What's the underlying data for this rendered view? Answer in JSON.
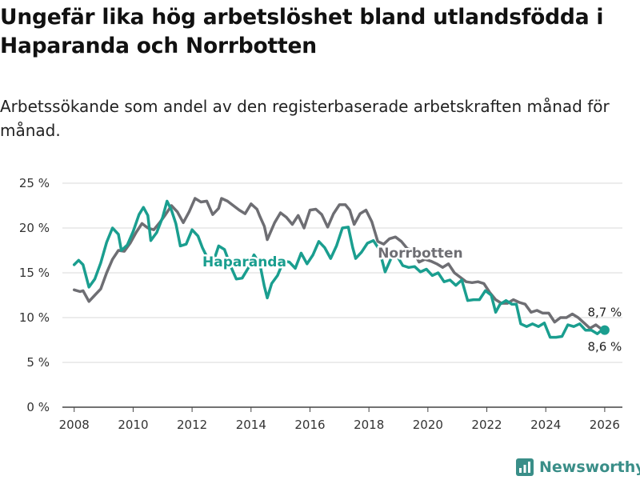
{
  "chart_data": {
    "type": "line",
    "title": "Ungefär lika hög arbetslöshet bland utlandsfödda i Haparanda och Norrbotten",
    "subtitle": "Arbetssökande som andel av den registerbaserade arbetskraften månad för månad.",
    "xlabel": "",
    "ylabel": "",
    "xlim": [
      2007.6,
      2026.6
    ],
    "ylim": [
      0,
      25
    ],
    "x_ticks": [
      2008,
      2010,
      2012,
      2014,
      2016,
      2018,
      2020,
      2022,
      2024,
      2026
    ],
    "x_tick_labels": [
      "2008",
      "2010",
      "2012",
      "2014",
      "2016",
      "2018",
      "2020",
      "2022",
      "2024",
      "2026"
    ],
    "y_ticks": [
      0,
      5,
      10,
      15,
      20,
      25
    ],
    "y_tick_labels": [
      "0 %",
      "5 %",
      "10 %",
      "15 %",
      "20 %",
      "25 %"
    ],
    "grid": true,
    "series": [
      {
        "name": "Norrbotten",
        "label": "Norrbotten",
        "color": "#6e6e73",
        "end_label": "8,7 %",
        "points": [
          [
            2008.0,
            13.1
          ],
          [
            2008.2,
            12.9
          ],
          [
            2008.3,
            13.0
          ],
          [
            2008.5,
            11.8
          ],
          [
            2008.7,
            12.5
          ],
          [
            2008.9,
            13.2
          ],
          [
            2009.1,
            15.0
          ],
          [
            2009.3,
            16.5
          ],
          [
            2009.5,
            17.5
          ],
          [
            2009.7,
            17.4
          ],
          [
            2009.9,
            18.3
          ],
          [
            2010.1,
            19.5
          ],
          [
            2010.3,
            20.5
          ],
          [
            2010.5,
            20.0
          ],
          [
            2010.7,
            19.8
          ],
          [
            2010.9,
            20.6
          ],
          [
            2011.1,
            21.5
          ],
          [
            2011.3,
            22.5
          ],
          [
            2011.5,
            21.8
          ],
          [
            2011.7,
            20.6
          ],
          [
            2011.9,
            21.8
          ],
          [
            2012.1,
            23.3
          ],
          [
            2012.3,
            22.9
          ],
          [
            2012.5,
            23.0
          ],
          [
            2012.7,
            21.5
          ],
          [
            2012.9,
            22.2
          ],
          [
            2013.0,
            23.3
          ],
          [
            2013.2,
            23.0
          ],
          [
            2013.4,
            22.5
          ],
          [
            2013.6,
            22.0
          ],
          [
            2013.8,
            21.6
          ],
          [
            2014.0,
            22.7
          ],
          [
            2014.2,
            22.1
          ],
          [
            2014.3,
            21.3
          ],
          [
            2014.45,
            20.2
          ],
          [
            2014.55,
            18.7
          ],
          [
            2014.8,
            20.6
          ],
          [
            2015.0,
            21.7
          ],
          [
            2015.2,
            21.2
          ],
          [
            2015.4,
            20.4
          ],
          [
            2015.6,
            21.4
          ],
          [
            2015.8,
            20.0
          ],
          [
            2016.0,
            22.0
          ],
          [
            2016.2,
            22.1
          ],
          [
            2016.4,
            21.5
          ],
          [
            2016.6,
            20.1
          ],
          [
            2016.8,
            21.6
          ],
          [
            2017.0,
            22.6
          ],
          [
            2017.2,
            22.6
          ],
          [
            2017.35,
            22.0
          ],
          [
            2017.5,
            20.4
          ],
          [
            2017.7,
            21.6
          ],
          [
            2017.9,
            22.0
          ],
          [
            2018.1,
            20.7
          ],
          [
            2018.3,
            18.5
          ],
          [
            2018.5,
            18.2
          ],
          [
            2018.7,
            18.8
          ],
          [
            2018.9,
            19.0
          ],
          [
            2019.1,
            18.5
          ],
          [
            2019.3,
            17.7
          ],
          [
            2019.5,
            17.5
          ],
          [
            2019.7,
            16.2
          ],
          [
            2019.9,
            16.5
          ],
          [
            2020.1,
            16.3
          ],
          [
            2020.3,
            16.0
          ],
          [
            2020.5,
            15.6
          ],
          [
            2020.7,
            16.0
          ],
          [
            2020.9,
            15.0
          ],
          [
            2021.1,
            14.5
          ],
          [
            2021.3,
            14.0
          ],
          [
            2021.5,
            13.9
          ],
          [
            2021.7,
            14.0
          ],
          [
            2021.9,
            13.8
          ],
          [
            2022.1,
            12.8
          ],
          [
            2022.3,
            12.0
          ],
          [
            2022.5,
            11.6
          ],
          [
            2022.7,
            11.6
          ],
          [
            2022.9,
            12.0
          ],
          [
            2023.1,
            11.7
          ],
          [
            2023.3,
            11.5
          ],
          [
            2023.5,
            10.6
          ],
          [
            2023.7,
            10.8
          ],
          [
            2023.9,
            10.5
          ],
          [
            2024.1,
            10.5
          ],
          [
            2024.3,
            9.5
          ],
          [
            2024.5,
            10.0
          ],
          [
            2024.7,
            10.0
          ],
          [
            2024.9,
            10.4
          ],
          [
            2025.1,
            10.0
          ],
          [
            2025.3,
            9.4
          ],
          [
            2025.5,
            8.8
          ],
          [
            2025.7,
            9.2
          ],
          [
            2025.9,
            8.7
          ],
          [
            2026.0,
            8.7
          ]
        ]
      },
      {
        "name": "Haparanda",
        "label": "Haparanda",
        "color": "#1a9e8f",
        "end_label": "8,6 %",
        "points": [
          [
            2008.0,
            15.9
          ],
          [
            2008.15,
            16.4
          ],
          [
            2008.3,
            15.9
          ],
          [
            2008.5,
            13.4
          ],
          [
            2008.7,
            14.3
          ],
          [
            2008.9,
            16.1
          ],
          [
            2009.1,
            18.4
          ],
          [
            2009.3,
            20.0
          ],
          [
            2009.5,
            19.3
          ],
          [
            2009.6,
            17.5
          ],
          [
            2009.8,
            18.1
          ],
          [
            2010.0,
            19.6
          ],
          [
            2010.2,
            21.5
          ],
          [
            2010.35,
            22.3
          ],
          [
            2010.5,
            21.4
          ],
          [
            2010.6,
            18.6
          ],
          [
            2010.8,
            19.5
          ],
          [
            2011.0,
            21.2
          ],
          [
            2011.15,
            23.0
          ],
          [
            2011.3,
            22.0
          ],
          [
            2011.45,
            20.5
          ],
          [
            2011.6,
            18.0
          ],
          [
            2011.8,
            18.2
          ],
          [
            2012.0,
            19.8
          ],
          [
            2012.2,
            19.1
          ],
          [
            2012.35,
            17.8
          ],
          [
            2012.5,
            16.8
          ],
          [
            2012.7,
            16.0
          ],
          [
            2012.9,
            18.0
          ],
          [
            2013.1,
            17.6
          ],
          [
            2013.3,
            15.8
          ],
          [
            2013.5,
            14.3
          ],
          [
            2013.7,
            14.4
          ],
          [
            2013.9,
            15.5
          ],
          [
            2014.1,
            17.0
          ],
          [
            2014.3,
            16.0
          ],
          [
            2014.45,
            13.5
          ],
          [
            2014.55,
            12.2
          ],
          [
            2014.7,
            13.8
          ],
          [
            2014.9,
            14.7
          ],
          [
            2015.1,
            16.3
          ],
          [
            2015.3,
            16.2
          ],
          [
            2015.5,
            15.5
          ],
          [
            2015.7,
            17.2
          ],
          [
            2015.9,
            16.0
          ],
          [
            2016.1,
            17.0
          ],
          [
            2016.3,
            18.5
          ],
          [
            2016.5,
            17.8
          ],
          [
            2016.7,
            16.6
          ],
          [
            2016.9,
            18.0
          ],
          [
            2017.1,
            20.0
          ],
          [
            2017.3,
            20.1
          ],
          [
            2017.45,
            17.8
          ],
          [
            2017.55,
            16.6
          ],
          [
            2017.75,
            17.3
          ],
          [
            2017.95,
            18.3
          ],
          [
            2018.15,
            18.6
          ],
          [
            2018.35,
            17.6
          ],
          [
            2018.55,
            15.1
          ],
          [
            2018.75,
            16.6
          ],
          [
            2018.95,
            16.9
          ],
          [
            2019.15,
            15.8
          ],
          [
            2019.35,
            15.6
          ],
          [
            2019.55,
            15.7
          ],
          [
            2019.75,
            15.1
          ],
          [
            2019.95,
            15.4
          ],
          [
            2020.15,
            14.7
          ],
          [
            2020.35,
            15.0
          ],
          [
            2020.55,
            14.0
          ],
          [
            2020.75,
            14.2
          ],
          [
            2020.95,
            13.6
          ],
          [
            2021.15,
            14.2
          ],
          [
            2021.35,
            11.9
          ],
          [
            2021.55,
            12.0
          ],
          [
            2021.75,
            12.0
          ],
          [
            2021.95,
            13.0
          ],
          [
            2022.15,
            12.5
          ],
          [
            2022.3,
            10.6
          ],
          [
            2022.45,
            11.5
          ],
          [
            2022.65,
            11.9
          ],
          [
            2022.85,
            11.5
          ],
          [
            2023.0,
            11.5
          ],
          [
            2023.15,
            9.3
          ],
          [
            2023.35,
            9.0
          ],
          [
            2023.55,
            9.3
          ],
          [
            2023.75,
            9.0
          ],
          [
            2023.95,
            9.4
          ],
          [
            2024.15,
            7.8
          ],
          [
            2024.35,
            7.8
          ],
          [
            2024.55,
            7.9
          ],
          [
            2024.75,
            9.2
          ],
          [
            2024.95,
            9.0
          ],
          [
            2025.15,
            9.3
          ],
          [
            2025.35,
            8.6
          ],
          [
            2025.55,
            8.6
          ],
          [
            2025.75,
            8.2
          ],
          [
            2025.9,
            8.6
          ],
          [
            2026.0,
            8.6
          ]
        ]
      }
    ]
  },
  "branding": {
    "name": "Newsworthy",
    "color": "#3a8e88"
  }
}
